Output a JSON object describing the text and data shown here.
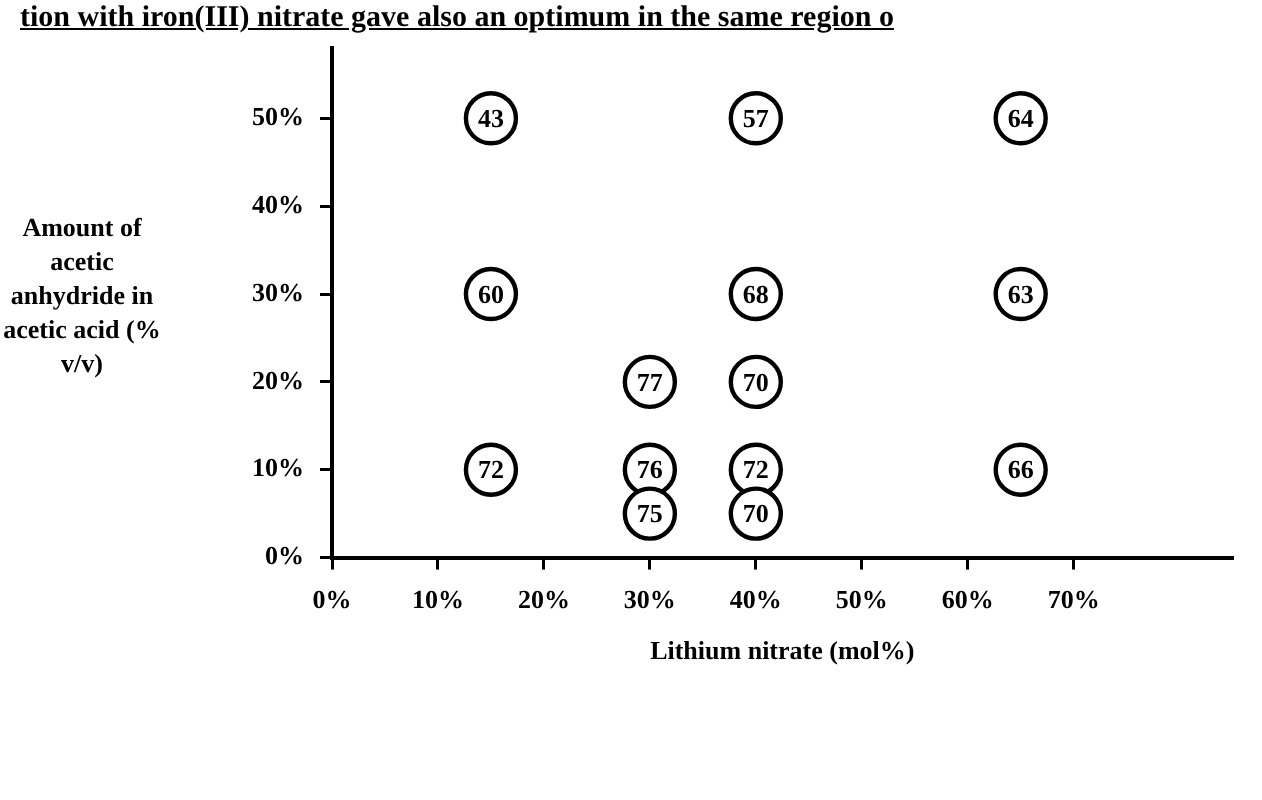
{
  "chart_data": {
    "type": "scatter",
    "xlabel": "Lithium nitrate (mol%)",
    "ylabel": "Amount of acetic anhydride in acetic acid (% v/v)",
    "annotations": [
      "tion with iron(III) nitrate gave also an optimum in the same region o",
      {
        "text": "43",
        "x": 15,
        "y": 50
      },
      {
        "text": "57",
        "x": 40,
        "y": 50
      },
      {
        "text": "64",
        "x": 65,
        "y": 50
      },
      {
        "text": "60",
        "x": 15,
        "y": 30
      },
      {
        "text": "68",
        "x": 40,
        "y": 30
      },
      {
        "text": "63",
        "x": 65,
        "y": 30
      },
      {
        "text": "77",
        "x": 30,
        "y": 20
      },
      {
        "text": "70",
        "x": 40,
        "y": 20
      },
      {
        "text": "72",
        "x": 15,
        "y": 10
      },
      {
        "text": "76",
        "x": 30,
        "y": 10
      },
      {
        "text": "72",
        "x": 40,
        "y": 10
      },
      {
        "text": "66",
        "x": 65,
        "y": 10
      },
      {
        "text": "75",
        "x": 30,
        "y": 5
      },
      {
        "text": "70",
        "x": 40,
        "y": 5
      }
    ],
    "x": [
      15,
      40,
      65,
      15,
      40,
      65,
      30,
      40,
      15,
      30,
      40,
      65,
      30,
      40
    ],
    "values": [
      50,
      50,
      50,
      30,
      30,
      30,
      20,
      20,
      10,
      10,
      10,
      10,
      5,
      5
    ],
    "color": "#000000",
    "marker": "circle",
    "grid": false,
    "legend": false,
    "xlim": [
      0,
      85
    ],
    "xticks": [
      {
        "value": 0,
        "label": "0%"
      },
      {
        "value": 10,
        "label": "10%"
      },
      {
        "value": 20,
        "label": "20%"
      },
      {
        "value": 30,
        "label": "30%"
      },
      {
        "value": 40,
        "label": "40%"
      },
      {
        "value": 50,
        "label": "50%"
      },
      {
        "value": 60,
        "label": "60%"
      },
      {
        "value": 70,
        "label": "70%"
      }
    ],
    "ylim": [
      0,
      58
    ],
    "yticks": [
      {
        "value": 0,
        "label": "0%"
      },
      {
        "value": 10,
        "label": "10%"
      },
      {
        "value": 20,
        "label": "20%"
      },
      {
        "value": 30,
        "label": "30%"
      },
      {
        "value": 40,
        "label": "40%"
      },
      {
        "value": 50,
        "label": "50%"
      }
    ]
  }
}
